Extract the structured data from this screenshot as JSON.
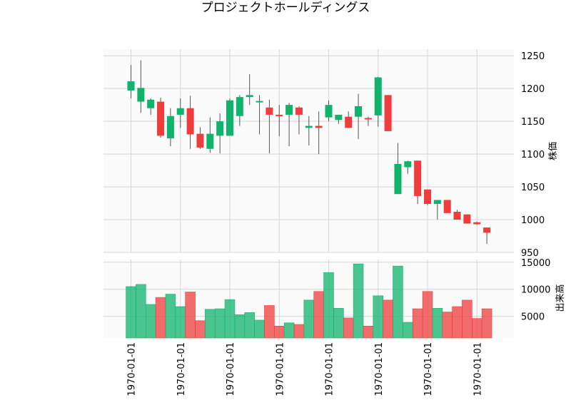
{
  "chart_data": {
    "type": "candlestick",
    "title": "プロジェクトホールディングス",
    "x_tick_labels": [
      "1970-01-01",
      "1970-01-01",
      "1970-01-01",
      "1970-01-01",
      "1970-01-01",
      "1970-01-01",
      "1970-01-01",
      "1970-01-01"
    ],
    "price_panel": {
      "ylabel": "株価",
      "ylim": [
        950,
        1260
      ],
      "yticks": [
        950,
        1000,
        1050,
        1100,
        1150,
        1200,
        1250
      ]
    },
    "volume_panel": {
      "ylabel": "出来高",
      "ylim": [
        1000,
        15500
      ],
      "yticks": [
        5000,
        10000,
        15000
      ]
    },
    "grid": true,
    "colors": {
      "up": "#10b36b",
      "down": "#f03c3c",
      "wick": "#555555",
      "grid": "#d6d6d6",
      "panel_bg": "#fafafa"
    },
    "candles": [
      {
        "open": 1197,
        "high": 1236,
        "low": 1185,
        "close": 1211,
        "volume": 10500
      },
      {
        "open": 1180,
        "high": 1243,
        "low": 1163,
        "close": 1201,
        "volume": 10900
      },
      {
        "open": 1170,
        "high": 1185,
        "low": 1160,
        "close": 1183,
        "volume": 7200
      },
      {
        "open": 1180,
        "high": 1186,
        "low": 1125,
        "close": 1128,
        "volume": 8500
      },
      {
        "open": 1124,
        "high": 1170,
        "low": 1112,
        "close": 1158,
        "volume": 9100
      },
      {
        "open": 1160,
        "high": 1185,
        "low": 1140,
        "close": 1170,
        "volume": 6800
      },
      {
        "open": 1170,
        "high": 1189,
        "low": 1108,
        "close": 1130,
        "volume": 9500
      },
      {
        "open": 1131,
        "high": 1141,
        "low": 1108,
        "close": 1110,
        "volume": 4200
      },
      {
        "open": 1108,
        "high": 1156,
        "low": 1102,
        "close": 1131,
        "volume": 6300
      },
      {
        "open": 1128,
        "high": 1162,
        "low": 1101,
        "close": 1150,
        "volume": 6400
      },
      {
        "open": 1128,
        "high": 1185,
        "low": 1128,
        "close": 1182,
        "volume": 8100
      },
      {
        "open": 1158,
        "high": 1190,
        "low": 1143,
        "close": 1187,
        "volume": 5300
      },
      {
        "open": 1187,
        "high": 1222,
        "low": 1175,
        "close": 1190,
        "volume": 5700
      },
      {
        "open": 1179,
        "high": 1190,
        "low": 1130,
        "close": 1181,
        "volume": 4300
      },
      {
        "open": 1171,
        "high": 1183,
        "low": 1101,
        "close": 1160,
        "volume": 7000
      },
      {
        "open": 1160,
        "high": 1175,
        "low": 1127,
        "close": 1159,
        "volume": 3200
      },
      {
        "open": 1160,
        "high": 1178,
        "low": 1112,
        "close": 1175,
        "volume": 3800
      },
      {
        "open": 1171,
        "high": 1173,
        "low": 1130,
        "close": 1160,
        "volume": 3500
      },
      {
        "open": 1140,
        "high": 1158,
        "low": 1113,
        "close": 1143,
        "volume": 8000
      },
      {
        "open": 1143,
        "high": 1165,
        "low": 1100,
        "close": 1140,
        "volume": 9600
      },
      {
        "open": 1156,
        "high": 1182,
        "low": 1150,
        "close": 1175,
        "volume": 13100
      },
      {
        "open": 1152,
        "high": 1160,
        "low": 1146,
        "close": 1160,
        "volume": 6500
      },
      {
        "open": 1157,
        "high": 1165,
        "low": 1140,
        "close": 1140,
        "volume": 4700
      },
      {
        "open": 1157,
        "high": 1192,
        "low": 1123,
        "close": 1173,
        "volume": 14700
      },
      {
        "open": 1155,
        "high": 1157,
        "low": 1143,
        "close": 1154,
        "volume": 3200
      },
      {
        "open": 1159,
        "high": 1218,
        "low": 1142,
        "close": 1217,
        "volume": 8800
      },
      {
        "open": 1190,
        "high": 1190,
        "low": 1135,
        "close": 1135,
        "volume": 8000
      },
      {
        "open": 1039,
        "high": 1117,
        "low": 1039,
        "close": 1085,
        "volume": 14300
      },
      {
        "open": 1080,
        "high": 1090,
        "low": 1070,
        "close": 1089,
        "volume": 3900
      },
      {
        "open": 1090,
        "high": 1090,
        "low": 1024,
        "close": 1036,
        "volume": 6400
      },
      {
        "open": 1046,
        "high": 1046,
        "low": 1022,
        "close": 1024,
        "volume": 9600
      },
      {
        "open": 1024,
        "high": 1030,
        "low": 1000,
        "close": 1030,
        "volume": 6500
      },
      {
        "open": 1030,
        "high": 1030,
        "low": 1010,
        "close": 1010,
        "volume": 5800
      },
      {
        "open": 1012,
        "high": 1015,
        "low": 1000,
        "close": 1000,
        "volume": 6800
      },
      {
        "open": 1008,
        "high": 1008,
        "low": 994,
        "close": 994,
        "volume": 8000
      },
      {
        "open": 996,
        "high": 997,
        "low": 992,
        "close": 993,
        "volume": 4600
      },
      {
        "open": 988,
        "high": 988,
        "low": 963,
        "close": 980,
        "volume": 6400
      }
    ]
  }
}
